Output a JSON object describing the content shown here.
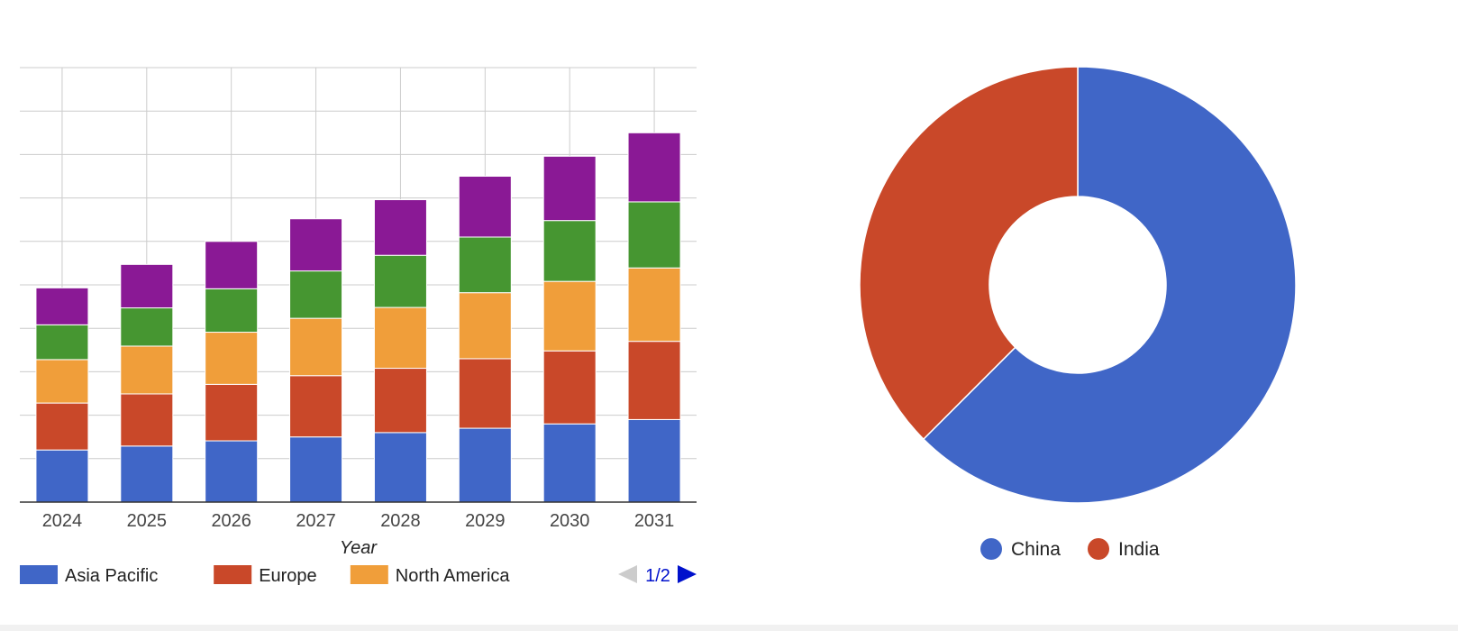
{
  "chart_data": [
    {
      "type": "bar",
      "stacked": true,
      "categories": [
        "2024",
        "2025",
        "2026",
        "2027",
        "2028",
        "2029",
        "2030",
        "2031"
      ],
      "series": [
        {
          "name": "Asia Pacific",
          "color": "#4066c7",
          "values": [
            1.2,
            1.29,
            1.41,
            1.5,
            1.6,
            1.7,
            1.8,
            1.9
          ]
        },
        {
          "name": "Europe",
          "color": "#c94829",
          "values": [
            1.08,
            1.2,
            1.3,
            1.41,
            1.48,
            1.6,
            1.68,
            1.8
          ]
        },
        {
          "name": "North America",
          "color": "#f09e3a",
          "values": [
            1.0,
            1.1,
            1.2,
            1.32,
            1.4,
            1.52,
            1.6,
            1.69
          ]
        },
        {
          "name": "",
          "color": "#469631",
          "values": [
            0.8,
            0.88,
            1.0,
            1.09,
            1.2,
            1.28,
            1.4,
            1.52
          ]
        },
        {
          "name": "",
          "color": "#8a1995",
          "values": [
            0.85,
            1.0,
            1.09,
            1.2,
            1.28,
            1.4,
            1.48,
            1.59
          ]
        }
      ],
      "xlabel": "Year",
      "ylabel": "",
      "ylim": [
        0,
        10
      ],
      "grid": true,
      "legend": {
        "position": "bottom",
        "entries": [
          "Asia Pacific",
          "Europe",
          "North America"
        ],
        "page": "1/2"
      }
    },
    {
      "type": "pie",
      "donut": true,
      "labels": [
        "China",
        "India"
      ],
      "values": [
        62.5,
        37.5
      ],
      "colors": [
        "#4066c7",
        "#c94829"
      ],
      "legend": {
        "position": "bottom"
      }
    }
  ]
}
